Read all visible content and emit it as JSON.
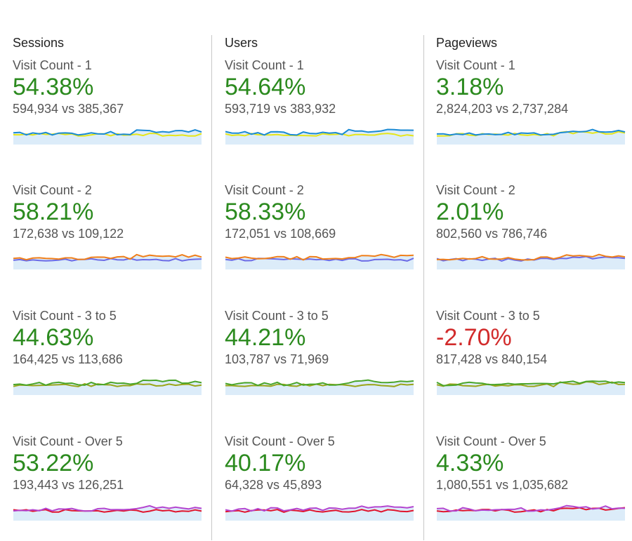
{
  "columns": [
    {
      "header": "Sessions",
      "cards": [
        {
          "label": "Visit Count - 1",
          "pct": "54.38%",
          "trend": "positive",
          "nums": "594,934 vs 385,367",
          "colors": [
            "#1a8ad4",
            "#e6e619"
          ]
        },
        {
          "label": "Visit Count - 2",
          "pct": "58.21%",
          "trend": "positive",
          "nums": "172,638 vs 109,122",
          "colors": [
            "#f07f1a",
            "#6b6be6"
          ]
        },
        {
          "label": "Visit Count - 3 to 5",
          "pct": "44.63%",
          "trend": "positive",
          "nums": "164,425 vs 113,686",
          "colors": [
            "#4aa52a",
            "#9aa519"
          ]
        },
        {
          "label": "Visit Count - Over 5",
          "pct": "53.22%",
          "trend": "positive",
          "nums": "193,443 vs 126,251",
          "colors": [
            "#b445cf",
            "#e0142d"
          ]
        }
      ]
    },
    {
      "header": "Users",
      "cards": [
        {
          "label": "Visit Count - 1",
          "pct": "54.64%",
          "trend": "positive",
          "nums": "593,719 vs 383,932",
          "colors": [
            "#1a8ad4",
            "#e6e619"
          ]
        },
        {
          "label": "Visit Count - 2",
          "pct": "58.33%",
          "trend": "positive",
          "nums": "172,051 vs 108,669",
          "colors": [
            "#f07f1a",
            "#6b6be6"
          ]
        },
        {
          "label": "Visit Count - 3 to 5",
          "pct": "44.21%",
          "trend": "positive",
          "nums": "103,787 vs 71,969",
          "colors": [
            "#4aa52a",
            "#9aa519"
          ]
        },
        {
          "label": "Visit Count - Over 5",
          "pct": "40.17%",
          "trend": "positive",
          "nums": "64,328 vs 45,893",
          "colors": [
            "#b445cf",
            "#e0142d"
          ]
        }
      ]
    },
    {
      "header": "Pageviews",
      "cards": [
        {
          "label": "Visit Count - 1",
          "pct": "3.18%",
          "trend": "positive",
          "nums": "2,824,203 vs 2,737,284",
          "colors": [
            "#1a8ad4",
            "#e6e619"
          ]
        },
        {
          "label": "Visit Count - 2",
          "pct": "2.01%",
          "trend": "positive",
          "nums": "802,560 vs 786,746",
          "colors": [
            "#f07f1a",
            "#6b6be6"
          ]
        },
        {
          "label": "Visit Count - 3 to 5",
          "pct": "-2.70%",
          "trend": "negative",
          "nums": "817,428 vs 840,154",
          "colors": [
            "#4aa52a",
            "#9aa519"
          ]
        },
        {
          "label": "Visit Count - Over 5",
          "pct": "4.33%",
          "trend": "positive",
          "nums": "1,080,551 vs 1,035,682",
          "colors": [
            "#b445cf",
            "#e0142d"
          ]
        }
      ]
    }
  ],
  "colors": {
    "positive": "#2b8a1e",
    "negative": "#d22b2b",
    "area_fill": "#dcecf9"
  }
}
